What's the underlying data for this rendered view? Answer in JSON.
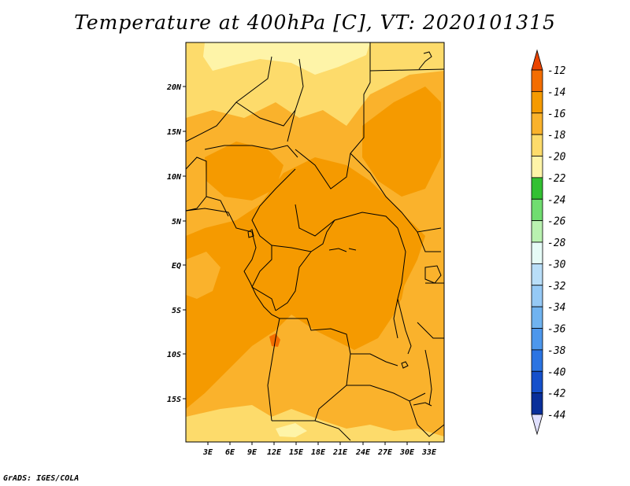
{
  "title": "Temperature at 400hPa [C], VT: 2020101315",
  "credit": "GrADS: IGES/COLA",
  "map": {
    "lon_range": [
      0,
      35
    ],
    "lat_range": [
      -20,
      25
    ],
    "x_ticks": [
      "3E",
      "6E",
      "9E",
      "12E",
      "15E",
      "18E",
      "21E",
      "24E",
      "27E",
      "30E",
      "33E"
    ],
    "y_ticks": [
      "20N",
      "15N",
      "10N",
      "5N",
      "EQ",
      "5S",
      "10S",
      "15S"
    ]
  },
  "colorbar": {
    "levels": [
      "-12",
      "-14",
      "-16",
      "-18",
      "-20",
      "-22",
      "-24",
      "-26",
      "-28",
      "-30",
      "-32",
      "-34",
      "-36",
      "-38",
      "-40",
      "-42",
      "-44"
    ],
    "colors": [
      "#ea4400",
      "#f36d00",
      "#f59a00",
      "#fab22c",
      "#fddb6b",
      "#fef4a8",
      "#32c032",
      "#70dd70",
      "#b9f1b0",
      "#e6fbf6",
      "#b9def8",
      "#95c9f5",
      "#70b3f0",
      "#4d97ec",
      "#2b74e2",
      "#1550cb",
      "#092f9a",
      "#050f68"
    ],
    "over_color": "#ea4400",
    "under_color": "#e0e0ff"
  }
}
